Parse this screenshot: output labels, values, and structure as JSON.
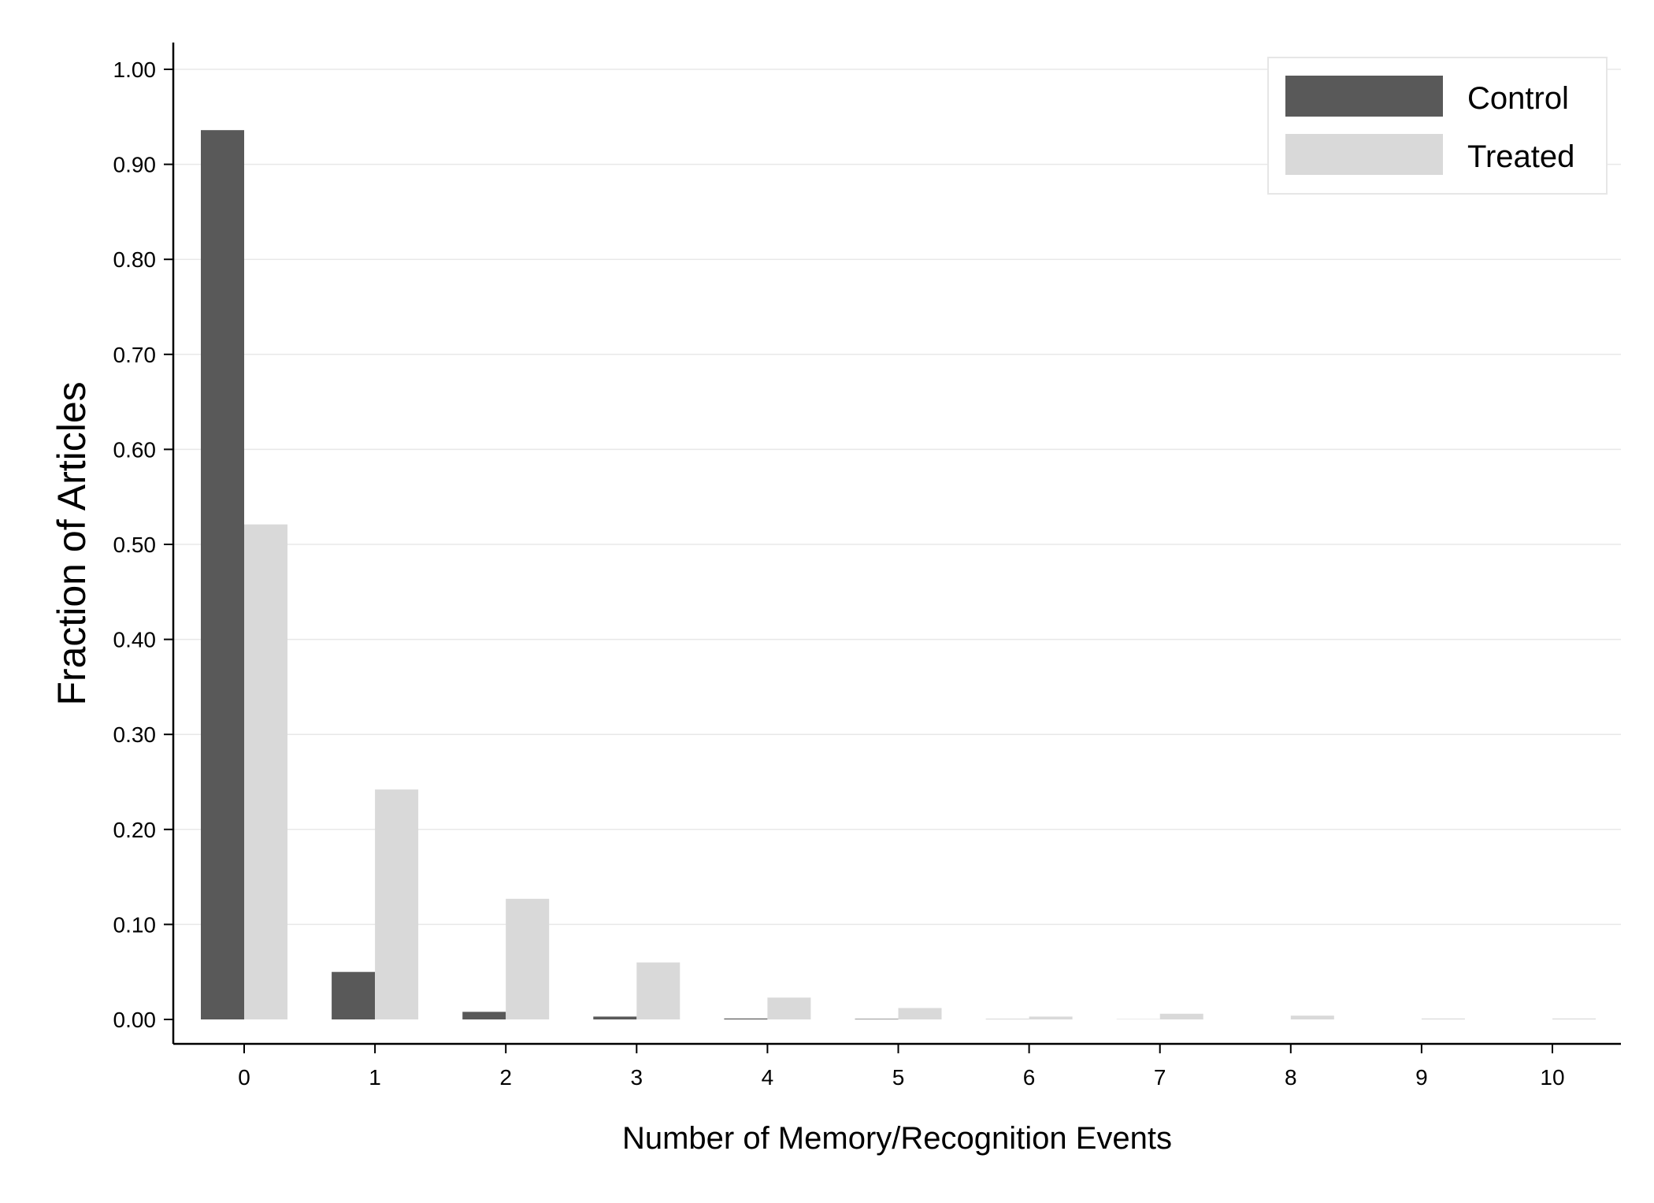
{
  "chart_data": {
    "type": "bar",
    "title": "",
    "xlabel": "Number of Memory/Recognition Events",
    "ylabel": "Fraction of Articles",
    "categories": [
      "0",
      "1",
      "2",
      "3",
      "4",
      "5",
      "6",
      "7",
      "8",
      "9",
      "10"
    ],
    "y_ticks": [
      "0.00",
      "0.10",
      "0.20",
      "0.30",
      "0.40",
      "0.50",
      "0.60",
      "0.70",
      "0.80",
      "0.90",
      "1.00"
    ],
    "ylim": [
      0,
      1.0
    ],
    "grid": true,
    "legend_position": "top-right",
    "series": [
      {
        "name": "Control",
        "color": "#595959",
        "values": [
          0.936,
          0.05,
          0.008,
          0.003,
          0.001,
          0.0005,
          0.0002,
          0.0001,
          0.0,
          0.0,
          0.0
        ]
      },
      {
        "name": "Treated",
        "color": "#d9d9d9",
        "values": [
          0.521,
          0.242,
          0.127,
          0.06,
          0.023,
          0.012,
          0.003,
          0.006,
          0.004,
          0.001,
          0.001
        ]
      }
    ]
  }
}
